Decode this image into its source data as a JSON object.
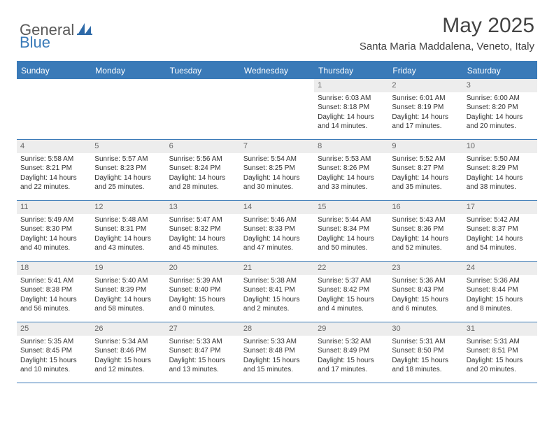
{
  "brand": {
    "text1": "General",
    "text2": "Blue"
  },
  "title": "May 2025",
  "location": "Santa Maria Maddalena, Veneto, Italy",
  "header_bg": "#3a7ab8",
  "weekdays": [
    "Sunday",
    "Monday",
    "Tuesday",
    "Wednesday",
    "Thursday",
    "Friday",
    "Saturday"
  ],
  "weeks": [
    [
      {
        "n": "",
        "sr": "",
        "ss": "",
        "dl": ""
      },
      {
        "n": "",
        "sr": "",
        "ss": "",
        "dl": ""
      },
      {
        "n": "",
        "sr": "",
        "ss": "",
        "dl": ""
      },
      {
        "n": "",
        "sr": "",
        "ss": "",
        "dl": ""
      },
      {
        "n": "1",
        "sr": "Sunrise: 6:03 AM",
        "ss": "Sunset: 8:18 PM",
        "dl": "Daylight: 14 hours and 14 minutes."
      },
      {
        "n": "2",
        "sr": "Sunrise: 6:01 AM",
        "ss": "Sunset: 8:19 PM",
        "dl": "Daylight: 14 hours and 17 minutes."
      },
      {
        "n": "3",
        "sr": "Sunrise: 6:00 AM",
        "ss": "Sunset: 8:20 PM",
        "dl": "Daylight: 14 hours and 20 minutes."
      }
    ],
    [
      {
        "n": "4",
        "sr": "Sunrise: 5:58 AM",
        "ss": "Sunset: 8:21 PM",
        "dl": "Daylight: 14 hours and 22 minutes."
      },
      {
        "n": "5",
        "sr": "Sunrise: 5:57 AM",
        "ss": "Sunset: 8:23 PM",
        "dl": "Daylight: 14 hours and 25 minutes."
      },
      {
        "n": "6",
        "sr": "Sunrise: 5:56 AM",
        "ss": "Sunset: 8:24 PM",
        "dl": "Daylight: 14 hours and 28 minutes."
      },
      {
        "n": "7",
        "sr": "Sunrise: 5:54 AM",
        "ss": "Sunset: 8:25 PM",
        "dl": "Daylight: 14 hours and 30 minutes."
      },
      {
        "n": "8",
        "sr": "Sunrise: 5:53 AM",
        "ss": "Sunset: 8:26 PM",
        "dl": "Daylight: 14 hours and 33 minutes."
      },
      {
        "n": "9",
        "sr": "Sunrise: 5:52 AM",
        "ss": "Sunset: 8:27 PM",
        "dl": "Daylight: 14 hours and 35 minutes."
      },
      {
        "n": "10",
        "sr": "Sunrise: 5:50 AM",
        "ss": "Sunset: 8:29 PM",
        "dl": "Daylight: 14 hours and 38 minutes."
      }
    ],
    [
      {
        "n": "11",
        "sr": "Sunrise: 5:49 AM",
        "ss": "Sunset: 8:30 PM",
        "dl": "Daylight: 14 hours and 40 minutes."
      },
      {
        "n": "12",
        "sr": "Sunrise: 5:48 AM",
        "ss": "Sunset: 8:31 PM",
        "dl": "Daylight: 14 hours and 43 minutes."
      },
      {
        "n": "13",
        "sr": "Sunrise: 5:47 AM",
        "ss": "Sunset: 8:32 PM",
        "dl": "Daylight: 14 hours and 45 minutes."
      },
      {
        "n": "14",
        "sr": "Sunrise: 5:46 AM",
        "ss": "Sunset: 8:33 PM",
        "dl": "Daylight: 14 hours and 47 minutes."
      },
      {
        "n": "15",
        "sr": "Sunrise: 5:44 AM",
        "ss": "Sunset: 8:34 PM",
        "dl": "Daylight: 14 hours and 50 minutes."
      },
      {
        "n": "16",
        "sr": "Sunrise: 5:43 AM",
        "ss": "Sunset: 8:36 PM",
        "dl": "Daylight: 14 hours and 52 minutes."
      },
      {
        "n": "17",
        "sr": "Sunrise: 5:42 AM",
        "ss": "Sunset: 8:37 PM",
        "dl": "Daylight: 14 hours and 54 minutes."
      }
    ],
    [
      {
        "n": "18",
        "sr": "Sunrise: 5:41 AM",
        "ss": "Sunset: 8:38 PM",
        "dl": "Daylight: 14 hours and 56 minutes."
      },
      {
        "n": "19",
        "sr": "Sunrise: 5:40 AM",
        "ss": "Sunset: 8:39 PM",
        "dl": "Daylight: 14 hours and 58 minutes."
      },
      {
        "n": "20",
        "sr": "Sunrise: 5:39 AM",
        "ss": "Sunset: 8:40 PM",
        "dl": "Daylight: 15 hours and 0 minutes."
      },
      {
        "n": "21",
        "sr": "Sunrise: 5:38 AM",
        "ss": "Sunset: 8:41 PM",
        "dl": "Daylight: 15 hours and 2 minutes."
      },
      {
        "n": "22",
        "sr": "Sunrise: 5:37 AM",
        "ss": "Sunset: 8:42 PM",
        "dl": "Daylight: 15 hours and 4 minutes."
      },
      {
        "n": "23",
        "sr": "Sunrise: 5:36 AM",
        "ss": "Sunset: 8:43 PM",
        "dl": "Daylight: 15 hours and 6 minutes."
      },
      {
        "n": "24",
        "sr": "Sunrise: 5:36 AM",
        "ss": "Sunset: 8:44 PM",
        "dl": "Daylight: 15 hours and 8 minutes."
      }
    ],
    [
      {
        "n": "25",
        "sr": "Sunrise: 5:35 AM",
        "ss": "Sunset: 8:45 PM",
        "dl": "Daylight: 15 hours and 10 minutes."
      },
      {
        "n": "26",
        "sr": "Sunrise: 5:34 AM",
        "ss": "Sunset: 8:46 PM",
        "dl": "Daylight: 15 hours and 12 minutes."
      },
      {
        "n": "27",
        "sr": "Sunrise: 5:33 AM",
        "ss": "Sunset: 8:47 PM",
        "dl": "Daylight: 15 hours and 13 minutes."
      },
      {
        "n": "28",
        "sr": "Sunrise: 5:33 AM",
        "ss": "Sunset: 8:48 PM",
        "dl": "Daylight: 15 hours and 15 minutes."
      },
      {
        "n": "29",
        "sr": "Sunrise: 5:32 AM",
        "ss": "Sunset: 8:49 PM",
        "dl": "Daylight: 15 hours and 17 minutes."
      },
      {
        "n": "30",
        "sr": "Sunrise: 5:31 AM",
        "ss": "Sunset: 8:50 PM",
        "dl": "Daylight: 15 hours and 18 minutes."
      },
      {
        "n": "31",
        "sr": "Sunrise: 5:31 AM",
        "ss": "Sunset: 8:51 PM",
        "dl": "Daylight: 15 hours and 20 minutes."
      }
    ]
  ]
}
